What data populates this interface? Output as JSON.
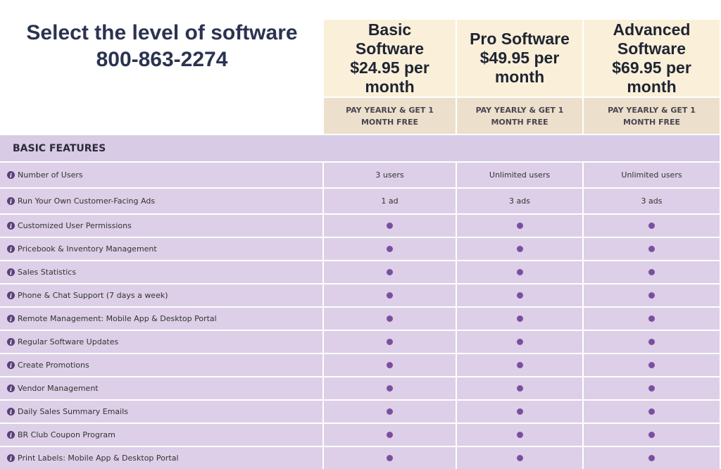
{
  "header": {
    "title": "Select the level of software",
    "phone": "800-863-2274"
  },
  "plans": [
    {
      "name": "Basic Software",
      "price": "$24.95 per month",
      "promo": "PAY YEARLY & GET 1 MONTH FREE"
    },
    {
      "name": "Pro Software",
      "price": "$49.95 per month",
      "promo": "PAY YEARLY & GET 1 MONTH FREE"
    },
    {
      "name": "Advanced Software",
      "price": "$69.95 per month",
      "promo": "PAY YEARLY & GET 1 MONTH FREE"
    }
  ],
  "section": "BASIC FEATURES",
  "features": [
    {
      "label": "Number of Users",
      "cells": [
        "3 users",
        "Unlimited users",
        "Unlimited users"
      ]
    },
    {
      "label": "Run Your Own Customer-Facing Ads",
      "cells": [
        "1 ad",
        "3 ads",
        "3 ads"
      ]
    },
    {
      "label": "Customized User Permissions",
      "cells": [
        true,
        true,
        true
      ]
    },
    {
      "label": "Pricebook & Inventory Management",
      "cells": [
        true,
        true,
        true
      ]
    },
    {
      "label": "Sales Statistics",
      "cells": [
        true,
        true,
        true
      ]
    },
    {
      "label": "Phone & Chat Support (7 days a week)",
      "cells": [
        true,
        true,
        true
      ]
    },
    {
      "label": "Remote Management: Mobile App & Desktop Portal",
      "cells": [
        true,
        true,
        true
      ]
    },
    {
      "label": "Regular Software Updates",
      "cells": [
        true,
        true,
        true
      ]
    },
    {
      "label": "Create Promotions",
      "cells": [
        true,
        true,
        true
      ]
    },
    {
      "label": "Vendor Management",
      "cells": [
        true,
        true,
        true
      ]
    },
    {
      "label": "Daily Sales Summary Emails",
      "cells": [
        true,
        true,
        true
      ]
    },
    {
      "label": "BR Club Coupon Program",
      "cells": [
        true,
        true,
        true
      ]
    },
    {
      "label": "Print Labels: Mobile App & Desktop Portal",
      "cells": [
        true,
        true,
        true
      ]
    }
  ]
}
